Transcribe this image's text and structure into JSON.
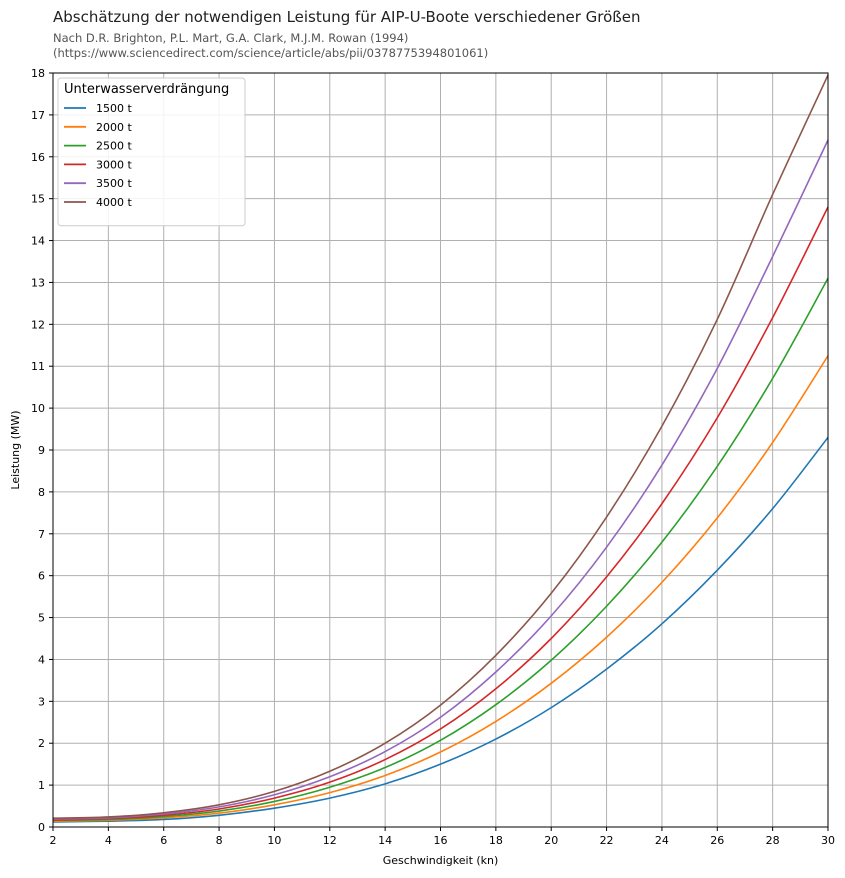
{
  "chart_data": {
    "type": "line",
    "title": "Abschätzung der notwendigen Leistung für AIP-U-Boote verschiedener Größen",
    "subtitle_line1": "Nach D.R. Brighton, P.L. Mart, G.A. Clark, M.J.M. Rowan (1994)",
    "subtitle_line2": "(https://www.sciencedirect.com/science/article/abs/pii/0378775394801061)",
    "xlabel": "Geschwindigkeit (kn)",
    "ylabel": "Leistung (MW)",
    "xlim": [
      2,
      30
    ],
    "ylim": [
      0,
      18
    ],
    "xticks": [
      2,
      4,
      6,
      8,
      10,
      12,
      14,
      16,
      18,
      20,
      22,
      24,
      26,
      28,
      30
    ],
    "yticks": [
      0,
      1,
      2,
      3,
      4,
      5,
      6,
      7,
      8,
      9,
      10,
      11,
      12,
      13,
      14,
      15,
      16,
      17,
      18
    ],
    "grid": true,
    "legend": {
      "title": "Unterwasserverdrängung",
      "position": "top-left"
    },
    "x": [
      2,
      4,
      6,
      8,
      10,
      12,
      14,
      16,
      18,
      20,
      22,
      24,
      26,
      28,
      30
    ],
    "series": [
      {
        "name": "1500 t",
        "color": "#1f77b4",
        "values": [
          0.12,
          0.14,
          0.18,
          0.28,
          0.45,
          0.69,
          1.03,
          1.5,
          2.1,
          2.85,
          3.77,
          4.85,
          6.13,
          7.6,
          9.3
        ]
      },
      {
        "name": "2000 t",
        "color": "#ff7f0e",
        "values": [
          0.14,
          0.16,
          0.22,
          0.33,
          0.53,
          0.82,
          1.23,
          1.79,
          2.52,
          3.43,
          4.53,
          5.84,
          7.38,
          9.18,
          11.25
        ]
      },
      {
        "name": "2500 t",
        "color": "#2ca02c",
        "values": [
          0.16,
          0.18,
          0.25,
          0.38,
          0.61,
          0.95,
          1.42,
          2.07,
          2.92,
          3.98,
          5.27,
          6.8,
          8.61,
          10.71,
          13.1
        ]
      },
      {
        "name": "3000 t",
        "color": "#d62728",
        "values": [
          0.17,
          0.2,
          0.28,
          0.43,
          0.69,
          1.07,
          1.61,
          2.34,
          3.3,
          4.5,
          5.97,
          7.72,
          9.77,
          12.16,
          14.8
        ]
      },
      {
        "name": "3500 t",
        "color": "#9467bd",
        "values": [
          0.19,
          0.22,
          0.31,
          0.48,
          0.77,
          1.2,
          1.8,
          2.62,
          3.7,
          5.04,
          6.68,
          8.64,
          10.95,
          13.62,
          16.4
        ]
      },
      {
        "name": "4000 t",
        "color": "#8c564b",
        "values": [
          0.21,
          0.24,
          0.34,
          0.53,
          0.85,
          1.33,
          2.0,
          2.91,
          4.1,
          5.58,
          7.4,
          9.57,
          12.12,
          15.1,
          17.95
        ]
      }
    ]
  }
}
